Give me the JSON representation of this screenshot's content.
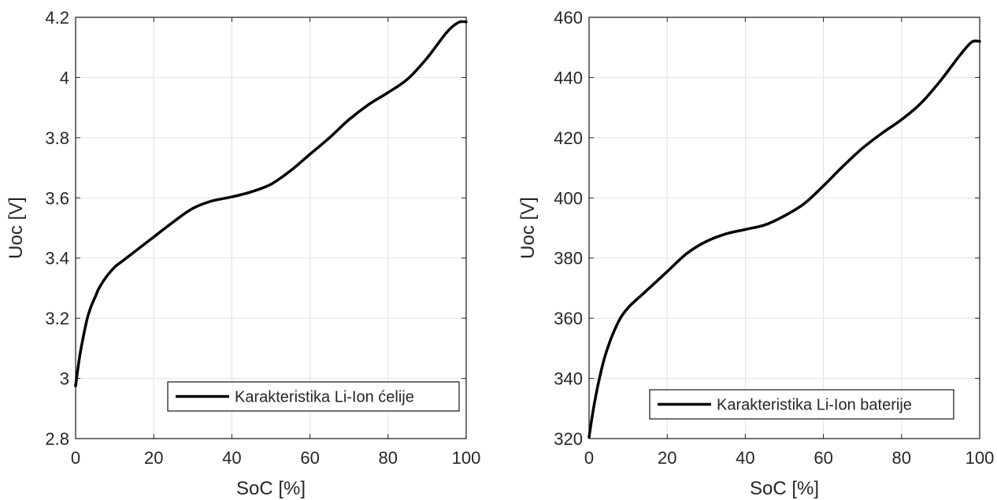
{
  "chart_data": [
    {
      "type": "line",
      "title": "",
      "xlabel": "SoC [%]",
      "ylabel": "Uoc [V]",
      "xlim": [
        0,
        100
      ],
      "ylim": [
        2.8,
        4.2
      ],
      "xticks": [
        "0",
        "20",
        "40",
        "60",
        "80",
        "100"
      ],
      "yticks": [
        "2.8",
        "3",
        "3.2",
        "3.4",
        "3.6",
        "3.8",
        "4",
        "4.2"
      ],
      "grid": true,
      "legend_position": "bottom-right",
      "series": [
        {
          "name": "Karakteristika Li-Ion ćelije",
          "color": "#000000",
          "x": [
            0,
            1,
            2,
            3,
            4,
            5,
            6,
            8,
            10,
            12,
            15,
            20,
            25,
            30,
            35,
            40,
            45,
            50,
            55,
            60,
            65,
            70,
            75,
            80,
            85,
            90,
            95,
            98,
            100
          ],
          "y": [
            2.975,
            3.07,
            3.14,
            3.2,
            3.24,
            3.27,
            3.3,
            3.34,
            3.37,
            3.39,
            3.42,
            3.47,
            3.52,
            3.565,
            3.59,
            3.603,
            3.62,
            3.645,
            3.69,
            3.745,
            3.8,
            3.86,
            3.91,
            3.95,
            3.995,
            4.065,
            4.15,
            4.183,
            4.185
          ]
        }
      ]
    },
    {
      "type": "line",
      "title": "",
      "xlabel": "SoC [%]",
      "ylabel": "Uoc [V]",
      "xlim": [
        0,
        100
      ],
      "ylim": [
        320,
        460
      ],
      "xticks": [
        "0",
        "20",
        "40",
        "60",
        "80",
        "100"
      ],
      "yticks": [
        "320",
        "340",
        "360",
        "380",
        "400",
        "420",
        "440",
        "460"
      ],
      "grid": true,
      "legend_position": "bottom-right",
      "series": [
        {
          "name": "Karakteristika Li-Ion baterije",
          "color": "#000000",
          "x": [
            0,
            1,
            2,
            3,
            4,
            5,
            6,
            8,
            10,
            12,
            15,
            20,
            25,
            30,
            35,
            40,
            45,
            50,
            55,
            60,
            65,
            70,
            75,
            80,
            85,
            90,
            95,
            98,
            100
          ],
          "y": [
            320.5,
            329,
            336,
            342,
            347,
            351,
            354.5,
            360,
            363.5,
            366,
            369.5,
            375.5,
            381.5,
            385.5,
            388,
            389.5,
            391,
            394,
            398,
            404,
            410.5,
            416.5,
            421.5,
            426,
            431.5,
            439,
            447.5,
            451.8,
            452
          ]
        }
      ]
    }
  ]
}
